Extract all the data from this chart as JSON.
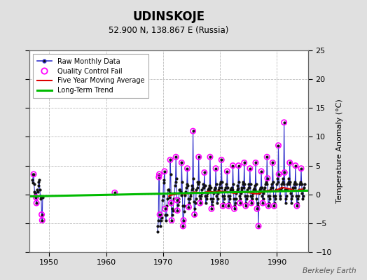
{
  "title": "UDINSKOJE",
  "subtitle": "52.900 N, 138.867 E (Russia)",
  "ylabel": "Temperature Anomaly (°C)",
  "credit": "Berkeley Earth",
  "xlim": [
    1946.5,
    1995.5
  ],
  "ylim": [
    -10,
    25
  ],
  "yticks": [
    -10,
    -5,
    0,
    5,
    10,
    15,
    20,
    25
  ],
  "xticks": [
    1950,
    1960,
    1970,
    1980,
    1990
  ],
  "bg_color": "#e0e0e0",
  "plot_bg": "#ffffff",
  "grid_color": "#bbbbbb",
  "raw_line_color": "#3333cc",
  "raw_marker_color": "#111111",
  "qc_fail_color": "#ff00ff",
  "moving_avg_color": "#dd0000",
  "trend_color": "#00bb00",
  "segments": [
    [
      [
        1947.0,
        2.5
      ],
      [
        1947.083,
        2.0
      ],
      [
        1947.167,
        3.5
      ],
      [
        1947.25,
        3.5
      ],
      [
        1947.333,
        1.8
      ],
      [
        1947.417,
        0.5
      ],
      [
        1947.5,
        0.2
      ],
      [
        1947.583,
        -0.2
      ],
      [
        1947.667,
        -0.5
      ],
      [
        1947.75,
        -1.5
      ],
      [
        1947.833,
        0.8
      ],
      [
        1948.0,
        0.5
      ],
      [
        1948.083,
        1.5
      ],
      [
        1948.167,
        2.2
      ],
      [
        1948.25,
        2.5
      ],
      [
        1948.333,
        0.8
      ],
      [
        1948.417,
        -0.3
      ],
      [
        1948.5,
        -0.8
      ],
      [
        1948.583,
        -0.5
      ],
      [
        1948.667,
        -3.5
      ],
      [
        1948.75,
        -4.5
      ],
      [
        1948.833,
        -0.5
      ]
    ],
    [
      [
        1961.5,
        0.3
      ]
    ],
    [
      [
        1969.0,
        -6.5
      ],
      [
        1969.083,
        -5.5
      ],
      [
        1969.167,
        -4.5
      ],
      [
        1969.25,
        3.0
      ],
      [
        1969.333,
        3.5
      ],
      [
        1969.417,
        -3.5
      ],
      [
        1969.5,
        -5.5
      ],
      [
        1969.583,
        -4.5
      ],
      [
        1969.667,
        -3.5
      ],
      [
        1969.75,
        -4.0
      ],
      [
        1969.833,
        -1.0
      ],
      [
        1970.0,
        -0.3
      ],
      [
        1970.083,
        2.5
      ],
      [
        1970.167,
        2.0
      ],
      [
        1970.25,
        4.0
      ],
      [
        1970.333,
        -2.5
      ],
      [
        1970.417,
        -3.5
      ],
      [
        1970.5,
        -4.5
      ],
      [
        1970.583,
        -3.5
      ],
      [
        1970.667,
        -2.0
      ],
      [
        1970.75,
        -0.8
      ],
      [
        1970.833,
        0.8
      ],
      [
        1971.0,
        0.8
      ],
      [
        1971.083,
        0.3
      ],
      [
        1971.167,
        -0.5
      ],
      [
        1971.25,
        6.0
      ],
      [
        1971.333,
        3.5
      ],
      [
        1971.417,
        -1.5
      ],
      [
        1971.5,
        -4.5
      ],
      [
        1971.583,
        -3.5
      ],
      [
        1971.667,
        -2.5
      ],
      [
        1971.75,
        -2.8
      ],
      [
        1971.833,
        -0.8
      ],
      [
        1972.0,
        0.2
      ],
      [
        1972.083,
        1.5
      ],
      [
        1972.167,
        2.2
      ],
      [
        1972.25,
        6.5
      ],
      [
        1972.333,
        2.8
      ],
      [
        1972.417,
        -1.0
      ],
      [
        1972.5,
        -2.8
      ],
      [
        1972.583,
        -1.8
      ],
      [
        1972.667,
        -1.2
      ],
      [
        1972.75,
        -0.8
      ],
      [
        1972.833,
        0.8
      ],
      [
        1973.0,
        0.8
      ],
      [
        1973.083,
        0.5
      ],
      [
        1973.167,
        -0.2
      ],
      [
        1973.25,
        5.5
      ],
      [
        1973.333,
        2.2
      ],
      [
        1973.417,
        -2.0
      ],
      [
        1973.5,
        -5.5
      ],
      [
        1973.583,
        -4.5
      ],
      [
        1973.667,
        -3.0
      ],
      [
        1973.75,
        -2.0
      ],
      [
        1973.833,
        -0.2
      ],
      [
        1974.0,
        0.5
      ],
      [
        1974.083,
        1.2
      ],
      [
        1974.167,
        1.8
      ],
      [
        1974.25,
        4.5
      ],
      [
        1974.333,
        1.5
      ],
      [
        1974.417,
        -0.8
      ],
      [
        1974.5,
        -2.2
      ],
      [
        1974.583,
        -1.5
      ],
      [
        1974.667,
        -0.8
      ],
      [
        1974.75,
        -0.3
      ],
      [
        1974.833,
        0.2
      ],
      [
        1975.0,
        0.8
      ],
      [
        1975.083,
        1.5
      ],
      [
        1975.167,
        1.0
      ],
      [
        1975.25,
        11.0
      ],
      [
        1975.333,
        2.8
      ],
      [
        1975.417,
        -1.2
      ],
      [
        1975.5,
        -3.5
      ],
      [
        1975.583,
        -2.5
      ],
      [
        1975.667,
        -1.5
      ],
      [
        1975.75,
        -0.8
      ],
      [
        1975.833,
        0.8
      ],
      [
        1976.0,
        1.2
      ],
      [
        1976.083,
        2.2
      ],
      [
        1976.167,
        1.8
      ],
      [
        1976.25,
        6.5
      ],
      [
        1976.333,
        2.2
      ],
      [
        1976.417,
        -0.3
      ],
      [
        1976.5,
        -1.5
      ],
      [
        1976.583,
        -0.8
      ],
      [
        1976.667,
        -0.3
      ],
      [
        1976.75,
        0.2
      ],
      [
        1976.833,
        0.8
      ],
      [
        1977.0,
        1.2
      ],
      [
        1977.083,
        1.8
      ],
      [
        1977.167,
        1.2
      ],
      [
        1977.25,
        3.8
      ],
      [
        1977.333,
        1.5
      ],
      [
        1977.417,
        -0.3
      ],
      [
        1977.5,
        -1.5
      ],
      [
        1977.583,
        -0.8
      ],
      [
        1977.667,
        -0.3
      ],
      [
        1977.75,
        0.2
      ],
      [
        1977.833,
        0.8
      ],
      [
        1978.0,
        1.0
      ],
      [
        1978.083,
        1.5
      ],
      [
        1978.167,
        0.8
      ],
      [
        1978.25,
        6.5
      ],
      [
        1978.333,
        1.2
      ],
      [
        1978.417,
        -0.8
      ],
      [
        1978.5,
        -2.5
      ],
      [
        1978.583,
        -1.8
      ],
      [
        1978.667,
        -1.2
      ],
      [
        1978.75,
        -0.8
      ],
      [
        1978.833,
        0.2
      ],
      [
        1979.0,
        0.8
      ],
      [
        1979.083,
        1.2
      ],
      [
        1979.167,
        1.0
      ],
      [
        1979.25,
        4.5
      ],
      [
        1979.333,
        1.8
      ],
      [
        1979.417,
        -0.3
      ],
      [
        1979.5,
        -1.5
      ],
      [
        1979.583,
        -0.8
      ],
      [
        1979.667,
        0.2
      ],
      [
        1979.75,
        0.8
      ],
      [
        1979.833,
        1.2
      ],
      [
        1980.0,
        1.8
      ],
      [
        1980.083,
        2.2
      ],
      [
        1980.167,
        1.2
      ],
      [
        1980.25,
        6.0
      ],
      [
        1980.333,
        2.2
      ],
      [
        1980.417,
        -0.3
      ],
      [
        1980.5,
        -2.0
      ],
      [
        1980.583,
        -1.5
      ],
      [
        1980.667,
        -0.8
      ],
      [
        1980.75,
        -0.3
      ],
      [
        1980.833,
        0.8
      ],
      [
        1981.0,
        1.2
      ],
      [
        1981.083,
        1.8
      ],
      [
        1981.167,
        1.2
      ],
      [
        1981.25,
        4.0
      ],
      [
        1981.333,
        1.2
      ],
      [
        1981.417,
        -0.3
      ],
      [
        1981.5,
        -2.0
      ],
      [
        1981.583,
        -1.5
      ],
      [
        1981.667,
        -0.8
      ],
      [
        1981.75,
        -0.3
      ],
      [
        1981.833,
        0.8
      ],
      [
        1982.0,
        1.0
      ],
      [
        1982.083,
        1.2
      ],
      [
        1982.167,
        0.8
      ],
      [
        1982.25,
        5.0
      ],
      [
        1982.333,
        1.8
      ],
      [
        1982.417,
        -0.8
      ],
      [
        1982.5,
        -2.5
      ],
      [
        1982.583,
        -2.0
      ],
      [
        1982.667,
        -1.5
      ],
      [
        1982.75,
        -0.8
      ],
      [
        1982.833,
        0.2
      ],
      [
        1983.0,
        0.8
      ],
      [
        1983.083,
        1.5
      ],
      [
        1983.167,
        1.0
      ],
      [
        1983.25,
        5.0
      ],
      [
        1983.333,
        2.2
      ],
      [
        1983.417,
        -0.3
      ],
      [
        1983.5,
        -1.5
      ],
      [
        1983.583,
        -0.8
      ],
      [
        1983.667,
        0.2
      ],
      [
        1983.75,
        0.8
      ],
      [
        1983.833,
        1.2
      ],
      [
        1984.0,
        1.8
      ],
      [
        1984.083,
        2.2
      ],
      [
        1984.167,
        1.2
      ],
      [
        1984.25,
        5.5
      ],
      [
        1984.333,
        1.8
      ],
      [
        1984.417,
        -0.3
      ],
      [
        1984.5,
        -2.0
      ],
      [
        1984.583,
        -1.5
      ],
      [
        1984.667,
        -0.8
      ],
      [
        1984.75,
        -0.3
      ],
      [
        1984.833,
        0.8
      ],
      [
        1985.0,
        1.2
      ],
      [
        1985.083,
        1.8
      ],
      [
        1985.167,
        1.2
      ],
      [
        1985.25,
        4.5
      ],
      [
        1985.333,
        1.8
      ],
      [
        1985.417,
        -0.3
      ],
      [
        1985.5,
        -1.5
      ],
      [
        1985.583,
        -0.8
      ],
      [
        1985.667,
        -0.3
      ],
      [
        1985.75,
        0.2
      ],
      [
        1985.833,
        0.8
      ],
      [
        1986.0,
        1.0
      ],
      [
        1986.083,
        1.5
      ],
      [
        1986.167,
        0.8
      ],
      [
        1986.25,
        5.5
      ],
      [
        1986.333,
        1.8
      ],
      [
        1986.417,
        -0.8
      ],
      [
        1986.5,
        -2.5
      ],
      [
        1986.583,
        -2.0
      ],
      [
        1986.667,
        -1.5
      ],
      [
        1986.75,
        -5.5
      ],
      [
        1986.833,
        0.2
      ],
      [
        1987.0,
        0.8
      ],
      [
        1987.083,
        1.2
      ],
      [
        1987.167,
        1.0
      ],
      [
        1987.25,
        4.0
      ],
      [
        1987.333,
        1.2
      ],
      [
        1987.417,
        -0.3
      ],
      [
        1987.5,
        -1.5
      ],
      [
        1987.583,
        -0.8
      ],
      [
        1987.667,
        0.2
      ],
      [
        1987.75,
        0.8
      ],
      [
        1987.833,
        1.2
      ],
      [
        1988.0,
        1.8
      ],
      [
        1988.083,
        2.2
      ],
      [
        1988.167,
        1.8
      ],
      [
        1988.25,
        6.5
      ],
      [
        1988.333,
        2.8
      ],
      [
        1988.417,
        -0.3
      ],
      [
        1988.5,
        -2.0
      ],
      [
        1988.583,
        -1.5
      ],
      [
        1988.667,
        -0.8
      ],
      [
        1988.75,
        -0.3
      ],
      [
        1988.833,
        0.8
      ],
      [
        1989.0,
        1.2
      ],
      [
        1989.083,
        1.8
      ],
      [
        1989.167,
        1.2
      ],
      [
        1989.25,
        5.5
      ],
      [
        1989.333,
        2.2
      ],
      [
        1989.417,
        -0.3
      ],
      [
        1989.5,
        -2.0
      ],
      [
        1989.583,
        -1.5
      ],
      [
        1989.667,
        -0.8
      ],
      [
        1989.75,
        -0.3
      ],
      [
        1989.833,
        0.8
      ],
      [
        1990.0,
        1.8
      ],
      [
        1990.083,
        2.8
      ],
      [
        1990.167,
        2.2
      ],
      [
        1990.25,
        8.5
      ],
      [
        1990.333,
        3.5
      ],
      [
        1990.417,
        0.8
      ],
      [
        1990.5,
        -0.8
      ],
      [
        1990.583,
        -0.3
      ],
      [
        1990.667,
        0.8
      ],
      [
        1990.75,
        1.2
      ],
      [
        1990.833,
        1.8
      ],
      [
        1991.0,
        2.2
      ],
      [
        1991.083,
        2.8
      ],
      [
        1991.167,
        1.8
      ],
      [
        1991.25,
        12.5
      ],
      [
        1991.333,
        3.8
      ],
      [
        1991.417,
        0.8
      ],
      [
        1991.5,
        -1.5
      ],
      [
        1991.583,
        -0.8
      ],
      [
        1991.667,
        -0.3
      ],
      [
        1991.75,
        0.8
      ],
      [
        1991.833,
        1.8
      ],
      [
        1992.0,
        2.2
      ],
      [
        1992.083,
        2.8
      ],
      [
        1992.167,
        1.8
      ],
      [
        1992.25,
        5.5
      ],
      [
        1992.333,
        2.2
      ],
      [
        1992.417,
        0.2
      ],
      [
        1992.5,
        -1.5
      ],
      [
        1992.583,
        -0.8
      ],
      [
        1992.667,
        -0.3
      ],
      [
        1992.75,
        0.8
      ],
      [
        1992.833,
        1.2
      ],
      [
        1993.0,
        1.8
      ],
      [
        1993.083,
        2.2
      ],
      [
        1993.167,
        1.2
      ],
      [
        1993.25,
        5.0
      ],
      [
        1993.333,
        1.8
      ],
      [
        1993.417,
        -0.3
      ],
      [
        1993.5,
        -2.0
      ],
      [
        1993.583,
        -1.5
      ],
      [
        1993.667,
        -0.8
      ],
      [
        1993.75,
        -0.3
      ],
      [
        1993.833,
        0.8
      ],
      [
        1994.0,
        1.8
      ],
      [
        1994.083,
        2.2
      ],
      [
        1994.167,
        1.8
      ],
      [
        1994.25,
        4.5
      ],
      [
        1994.333,
        1.8
      ],
      [
        1994.417,
        0.2
      ],
      [
        1994.5,
        -0.8
      ],
      [
        1994.583,
        -0.3
      ],
      [
        1994.667,
        0.8
      ],
      [
        1994.75,
        1.2
      ],
      [
        1994.833,
        1.8
      ]
    ]
  ],
  "qc_fail_points": [
    [
      1947.25,
      3.5
    ],
    [
      1947.667,
      -0.5
    ],
    [
      1947.75,
      -1.5
    ],
    [
      1948.667,
      -3.5
    ],
    [
      1948.75,
      -4.5
    ],
    [
      1961.5,
      0.3
    ],
    [
      1969.25,
      3.0
    ],
    [
      1969.333,
      3.5
    ],
    [
      1969.417,
      -3.5
    ],
    [
      1970.25,
      4.0
    ],
    [
      1970.333,
      -2.5
    ],
    [
      1971.25,
      6.0
    ],
    [
      1971.417,
      -1.5
    ],
    [
      1971.5,
      -4.5
    ],
    [
      1972.25,
      6.5
    ],
    [
      1972.417,
      -1.0
    ],
    [
      1972.5,
      -2.8
    ],
    [
      1973.25,
      5.5
    ],
    [
      1973.5,
      -5.5
    ],
    [
      1973.583,
      -4.5
    ],
    [
      1974.25,
      4.5
    ],
    [
      1974.5,
      -2.2
    ],
    [
      1975.25,
      11.0
    ],
    [
      1975.5,
      -3.5
    ],
    [
      1976.25,
      6.5
    ],
    [
      1976.5,
      -1.5
    ],
    [
      1977.25,
      3.8
    ],
    [
      1978.25,
      6.5
    ],
    [
      1978.5,
      -2.5
    ],
    [
      1979.25,
      4.5
    ],
    [
      1980.25,
      6.0
    ],
    [
      1980.5,
      -2.0
    ],
    [
      1981.25,
      4.0
    ],
    [
      1981.5,
      -2.0
    ],
    [
      1982.25,
      5.0
    ],
    [
      1982.5,
      -2.5
    ],
    [
      1983.25,
      5.0
    ],
    [
      1983.5,
      -1.5
    ],
    [
      1984.25,
      5.5
    ],
    [
      1984.5,
      -2.0
    ],
    [
      1985.25,
      4.5
    ],
    [
      1985.5,
      -1.5
    ],
    [
      1986.25,
      5.5
    ],
    [
      1986.5,
      -2.5
    ],
    [
      1986.75,
      -5.5
    ],
    [
      1987.25,
      4.0
    ],
    [
      1987.5,
      -1.5
    ],
    [
      1988.25,
      6.5
    ],
    [
      1988.333,
      2.8
    ],
    [
      1988.5,
      -2.0
    ],
    [
      1989.25,
      5.5
    ],
    [
      1989.5,
      -2.0
    ],
    [
      1990.25,
      8.5
    ],
    [
      1990.333,
      3.5
    ],
    [
      1991.25,
      12.5
    ],
    [
      1991.333,
      3.8
    ],
    [
      1992.25,
      5.5
    ],
    [
      1993.25,
      5.0
    ],
    [
      1993.5,
      -2.0
    ],
    [
      1994.25,
      4.5
    ]
  ],
  "moving_avg": [
    [
      1971.0,
      -0.3
    ],
    [
      1971.5,
      -0.1
    ],
    [
      1972.0,
      0.0
    ],
    [
      1972.5,
      0.1
    ],
    [
      1973.0,
      0.2
    ],
    [
      1973.5,
      0.1
    ],
    [
      1974.0,
      0.1
    ],
    [
      1974.5,
      0.2
    ],
    [
      1975.0,
      0.3
    ],
    [
      1975.5,
      0.4
    ],
    [
      1976.0,
      0.35
    ],
    [
      1976.5,
      0.3
    ],
    [
      1977.0,
      0.25
    ],
    [
      1977.5,
      0.4
    ],
    [
      1978.0,
      0.5
    ],
    [
      1978.5,
      0.45
    ],
    [
      1979.0,
      0.4
    ],
    [
      1979.5,
      0.5
    ],
    [
      1980.0,
      0.55
    ],
    [
      1980.5,
      0.5
    ],
    [
      1981.0,
      0.45
    ],
    [
      1981.5,
      0.4
    ],
    [
      1982.0,
      0.3
    ],
    [
      1982.5,
      0.2
    ],
    [
      1983.0,
      0.3
    ],
    [
      1983.5,
      0.35
    ],
    [
      1984.0,
      0.4
    ],
    [
      1984.5,
      0.35
    ],
    [
      1985.0,
      0.3
    ],
    [
      1985.5,
      0.25
    ],
    [
      1986.0,
      0.15
    ],
    [
      1986.5,
      0.1
    ],
    [
      1987.0,
      0.2
    ],
    [
      1987.5,
      0.4
    ],
    [
      1988.0,
      0.6
    ],
    [
      1988.5,
      0.7
    ],
    [
      1989.0,
      0.65
    ],
    [
      1989.5,
      0.6
    ],
    [
      1990.0,
      0.8
    ],
    [
      1990.5,
      1.0
    ],
    [
      1991.0,
      1.2
    ],
    [
      1991.5,
      1.1
    ],
    [
      1992.0,
      1.0
    ],
    [
      1992.5,
      0.9
    ],
    [
      1993.0,
      0.7
    ],
    [
      1993.5,
      0.65
    ],
    [
      1994.0,
      0.85
    ],
    [
      1994.5,
      0.9
    ]
  ],
  "trend_x": [
    1946.5,
    1995.5
  ],
  "trend_y": [
    -0.35,
    0.65
  ]
}
